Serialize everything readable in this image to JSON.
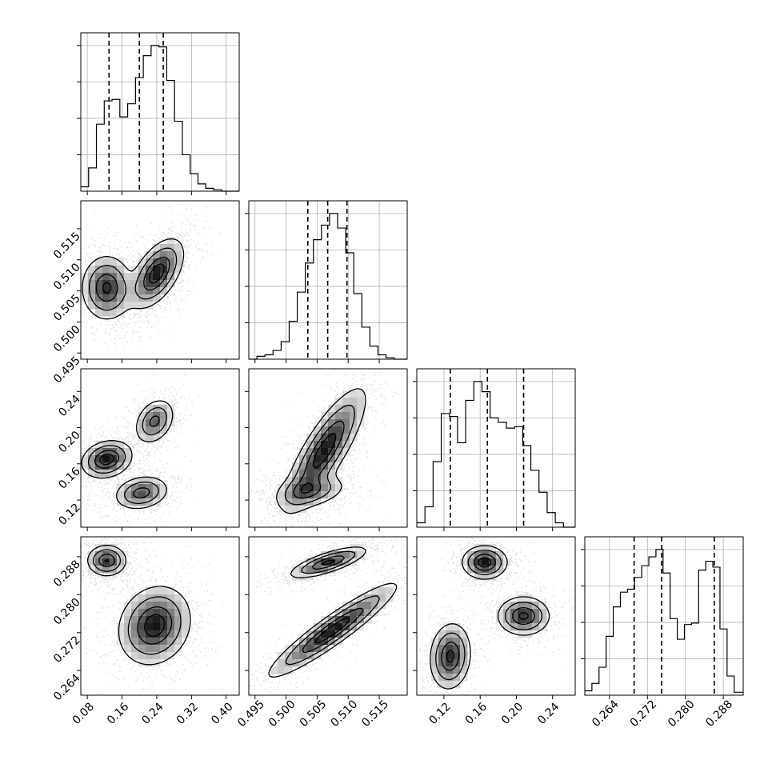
{
  "chart_data": {
    "type": "corner",
    "title": "",
    "parameters": [
      {
        "range": [
          0.065,
          0.43
        ],
        "ticks": [
          0.08,
          0.16,
          0.24,
          0.32,
          0.4
        ],
        "tick_labels": [
          "0.08",
          "0.16",
          "0.24",
          "0.32",
          "0.40"
        ],
        "quantiles": [
          0.13,
          0.2,
          0.255
        ]
      },
      {
        "range": [
          0.494,
          0.5195
        ],
        "ticks": [
          0.495,
          0.5,
          0.505,
          0.51,
          0.515
        ],
        "tick_labels": [
          "0.495",
          "0.500",
          "0.505",
          "0.510",
          "0.515"
        ],
        "quantiles": [
          0.5035,
          0.5067,
          0.5098
        ]
      },
      {
        "range": [
          0.09,
          0.265
        ],
        "ticks": [
          0.12,
          0.16,
          0.2,
          0.24
        ],
        "tick_labels": [
          "0.12",
          "0.16",
          "0.20",
          "0.24"
        ],
        "quantiles": [
          0.127,
          0.168,
          0.208
        ]
      },
      {
        "range": [
          0.2588,
          0.2922
        ],
        "ticks": [
          0.264,
          0.272,
          0.28,
          0.288
        ],
        "tick_labels": [
          "0.264",
          "0.272",
          "0.280",
          "0.288"
        ],
        "quantiles": [
          0.2692,
          0.275,
          0.2861
        ]
      }
    ],
    "histograms": [
      {
        "param": 0,
        "bin_edges": [
          0.065,
          0.083,
          0.101,
          0.119,
          0.137,
          0.155,
          0.173,
          0.191,
          0.209,
          0.227,
          0.245,
          0.263,
          0.281,
          0.299,
          0.317,
          0.335,
          0.353,
          0.371,
          0.389,
          0.407,
          0.43
        ],
        "counts": [
          3,
          16,
          46,
          62,
          63,
          51,
          60,
          78,
          93,
          100,
          99,
          76,
          48,
          25,
          12,
          5,
          2,
          1,
          0,
          0
        ]
      },
      {
        "param": 1,
        "bin_edges": [
          0.494,
          0.4953,
          0.4966,
          0.4979,
          0.4992,
          0.5005,
          0.5018,
          0.5031,
          0.5044,
          0.5057,
          0.507,
          0.5083,
          0.5096,
          0.5109,
          0.5122,
          0.5135,
          0.5148,
          0.5161,
          0.5174,
          0.5195
        ],
        "counts": [
          0,
          2,
          3,
          6,
          12,
          26,
          46,
          66,
          82,
          92,
          100,
          90,
          73,
          45,
          22,
          9,
          3,
          1,
          0
        ]
      },
      {
        "param": 2,
        "bin_edges": [
          0.09,
          0.099,
          0.108,
          0.117,
          0.126,
          0.135,
          0.144,
          0.153,
          0.162,
          0.171,
          0.18,
          0.189,
          0.198,
          0.207,
          0.216,
          0.225,
          0.234,
          0.243,
          0.252,
          0.261,
          0.265
        ],
        "counts": [
          3,
          14,
          45,
          78,
          76,
          58,
          87,
          100,
          93,
          75,
          72,
          68,
          69,
          56,
          39,
          24,
          10,
          3,
          0,
          0
        ]
      },
      {
        "param": 3,
        "bin_edges": [
          0.2588,
          0.2603,
          0.2618,
          0.2633,
          0.2648,
          0.2663,
          0.2678,
          0.2693,
          0.2708,
          0.2723,
          0.2738,
          0.2753,
          0.2768,
          0.2783,
          0.2798,
          0.2813,
          0.2828,
          0.2843,
          0.2858,
          0.2873,
          0.2888,
          0.2903,
          0.2922
        ],
        "counts": [
          3,
          8,
          19,
          40,
          60,
          70,
          72,
          80,
          88,
          94,
          99,
          83,
          52,
          38,
          48,
          49,
          85,
          91,
          87,
          45,
          13,
          2
        ]
      }
    ],
    "pairs": [
      {
        "x_param": 0,
        "y_param": 1,
        "modes": [
          {
            "cx": 0.125,
            "cy": 0.5055,
            "sx": 0.028,
            "sy": 0.0025,
            "rho": 0.0,
            "w": 0.9
          },
          {
            "cx": 0.24,
            "cy": 0.5078,
            "sx": 0.03,
            "sy": 0.0027,
            "rho": 0.55,
            "w": 1.0
          }
        ]
      },
      {
        "x_param": 0,
        "y_param": 2,
        "modes": [
          {
            "cx": 0.125,
            "cy": 0.165,
            "sx": 0.028,
            "sy": 0.01,
            "rho": 0.2,
            "w": 1.0
          },
          {
            "cx": 0.235,
            "cy": 0.207,
            "sx": 0.022,
            "sy": 0.012,
            "rho": 0.3,
            "w": 0.7
          },
          {
            "cx": 0.205,
            "cy": 0.128,
            "sx": 0.03,
            "sy": 0.009,
            "rho": 0.2,
            "w": 0.75
          }
        ]
      },
      {
        "x_param": 1,
        "y_param": 2,
        "modes": [
          {
            "cx": 0.5062,
            "cy": 0.175,
            "sx": 0.0032,
            "sy": 0.033,
            "rho": 0.82,
            "w": 1.0
          },
          {
            "cx": 0.504,
            "cy": 0.13,
            "sx": 0.0028,
            "sy": 0.009,
            "rho": 0.3,
            "w": 0.55
          }
        ]
      },
      {
        "x_param": 0,
        "y_param": 3,
        "modes": [
          {
            "cx": 0.125,
            "cy": 0.2872,
            "sx": 0.022,
            "sy": 0.0016,
            "rho": 0.0,
            "w": 1.0
          },
          {
            "cx": 0.235,
            "cy": 0.2735,
            "sx": 0.04,
            "sy": 0.004,
            "rho": 0.15,
            "w": 1.15
          }
        ]
      },
      {
        "x_param": 1,
        "y_param": 3,
        "modes": [
          {
            "cx": 0.5068,
            "cy": 0.2868,
            "sx": 0.003,
            "sy": 0.0016,
            "rho": 0.75,
            "w": 1.0
          },
          {
            "cx": 0.5075,
            "cy": 0.2725,
            "sx": 0.005,
            "sy": 0.0048,
            "rho": 0.93,
            "w": 1.1
          }
        ]
      },
      {
        "x_param": 2,
        "y_param": 3,
        "modes": [
          {
            "cx": 0.165,
            "cy": 0.2868,
            "sx": 0.012,
            "sy": 0.0017,
            "rho": 0.0,
            "w": 1.0
          },
          {
            "cx": 0.208,
            "cy": 0.2755,
            "sx": 0.014,
            "sy": 0.002,
            "rho": 0.0,
            "w": 0.9
          },
          {
            "cx": 0.127,
            "cy": 0.267,
            "sx": 0.011,
            "sy": 0.0034,
            "rho": 0.1,
            "w": 0.9
          }
        ]
      }
    ],
    "contour_levels": [
      0.12,
      0.32,
      0.62,
      0.85
    ],
    "grid": true,
    "legend": "none"
  }
}
